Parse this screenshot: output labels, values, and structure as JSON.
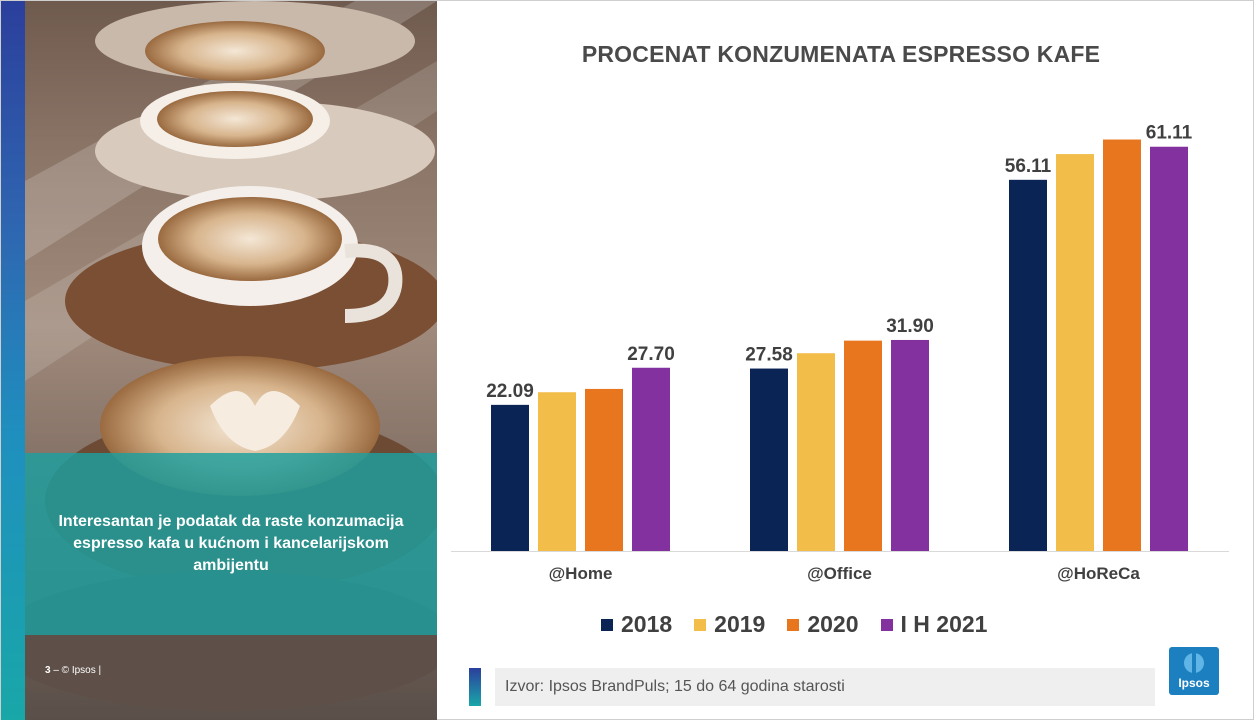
{
  "panel": {
    "text": "Interesantan je podatak da raste konzumacija espresso kafa u kućnom i kancelarijskom ambijentu",
    "footer_page": "3",
    "footer_text": "– © Ipsos |"
  },
  "source": "Izvor: Ipsos BrandPuls; 15 do 64 godina starosti",
  "logo_text": "Ipsos",
  "colors": {
    "s2018": "#0a2455",
    "s2019": "#f2bd48",
    "s2020": "#e8761f",
    "s2021": "#8431a0",
    "teal": "#1ca0a0"
  },
  "chart_data": {
    "type": "bar",
    "title": "PROCENAT KONZUMENATA ESPRESSO KAFE",
    "categories": [
      "@Home",
      "@Office",
      "@HoReCa"
    ],
    "series": [
      {
        "name": "2018",
        "values": [
          22.09,
          27.58,
          56.11
        ],
        "color": "#0a2455"
      },
      {
        "name": "2019",
        "values": [
          24.0,
          29.9,
          60.0
        ],
        "color": "#f2bd48"
      },
      {
        "name": "2020",
        "values": [
          24.5,
          31.8,
          62.2
        ],
        "color": "#e8761f"
      },
      {
        "name": "I H 2021",
        "values": [
          27.7,
          31.9,
          61.11
        ],
        "color": "#8431a0"
      }
    ],
    "data_labels": [
      {
        "category": "@Home",
        "series": "2018",
        "text": "22.09"
      },
      {
        "category": "@Home",
        "series": "I H 2021",
        "text": "27.70"
      },
      {
        "category": "@Office",
        "series": "2018",
        "text": "27.58"
      },
      {
        "category": "@Office",
        "series": "I H 2021",
        "text": "31.90"
      },
      {
        "category": "@HoReCa",
        "series": "2018",
        "text": "56.11"
      },
      {
        "category": "@HoReCa",
        "series": "I H 2021",
        "text": "61.11"
      }
    ],
    "ylim": [
      0,
      65
    ],
    "grid": false,
    "legend": "bottom"
  }
}
